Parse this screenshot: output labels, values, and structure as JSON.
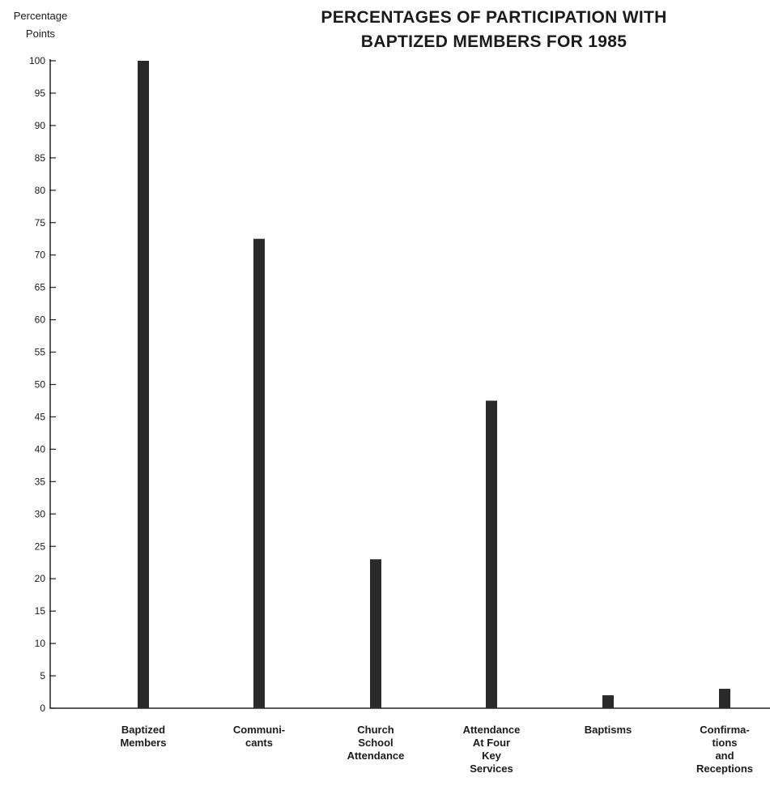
{
  "chart_data": {
    "type": "bar",
    "title_lines": [
      "PERCENTAGES OF PARTICIPATION WITH",
      "BAPTIZED MEMBERS FOR 1985"
    ],
    "ylabel_lines": [
      "Percentage",
      "Points"
    ],
    "categories": [
      [
        "Baptized",
        "Members"
      ],
      [
        "Communi-",
        "cants"
      ],
      [
        "Church",
        "School",
        "Attendance"
      ],
      [
        "Attendance",
        "At Four",
        "Key",
        "Services"
      ],
      [
        "Baptisms"
      ],
      [
        "Confirma-",
        "tions",
        "and",
        "Receptions"
      ]
    ],
    "values": [
      100,
      72.5,
      23,
      47.5,
      2,
      3
    ],
    "ylim": [
      0,
      100
    ],
    "yticks": [
      0,
      5,
      10,
      15,
      20,
      25,
      30,
      35,
      40,
      45,
      50,
      55,
      60,
      65,
      70,
      75,
      80,
      85,
      90,
      95,
      100
    ],
    "grid": false,
    "bar_color": "#2a2a2a"
  }
}
